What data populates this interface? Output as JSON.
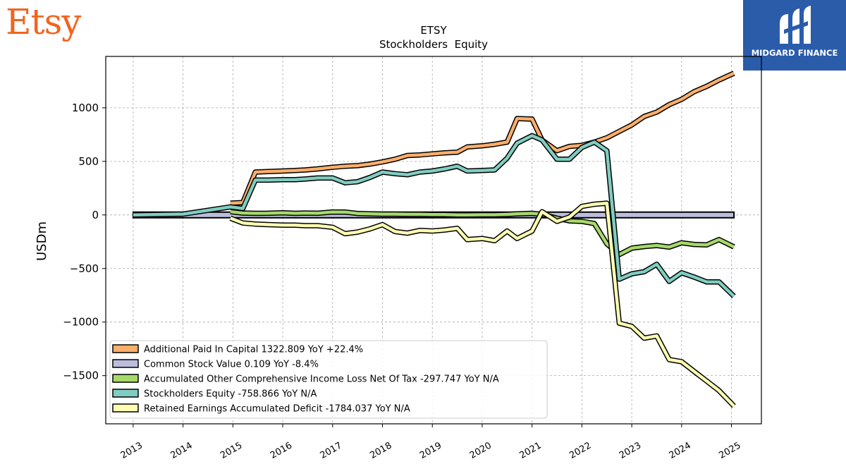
{
  "brand": {
    "company_logo_text": "Etsy",
    "publisher_logo_text": "MIDGARD FINANCE"
  },
  "chart_data": {
    "type": "line",
    "title": "ETSY",
    "subtitle": "Stockholders  Equity",
    "ylabel": "USDm",
    "xlabel": "",
    "ylim": [
      -1950,
      1480
    ],
    "xlim": [
      2012.45,
      2025.6
    ],
    "yticks": [
      -1500,
      -1000,
      -500,
      0,
      500,
      1000
    ],
    "ytick_labels": [
      "−1500",
      "−1000",
      "−500",
      "0",
      "500",
      "1000"
    ],
    "xticks": [
      2013,
      2014,
      2015,
      2016,
      2017,
      2018,
      2019,
      2020,
      2021,
      2022,
      2023,
      2024,
      2025
    ],
    "xtick_labels": [
      "2013",
      "2014",
      "2015",
      "2016",
      "2017",
      "2018",
      "2019",
      "2020",
      "2021",
      "2022",
      "2023",
      "2024",
      "2025"
    ],
    "grid": true,
    "legend_position": "lower-left",
    "series": [
      {
        "name": "Additional Paid In Capital",
        "legend_label": "Additional Paid In Capital  1322.809 YoY +22.4%",
        "color": "#fdae6b",
        "x": [
          2014.95,
          2015.2,
          2015.45,
          2015.7,
          2016.0,
          2016.25,
          2016.45,
          2016.7,
          2017.0,
          2017.25,
          2017.5,
          2017.75,
          2018.0,
          2018.25,
          2018.5,
          2018.75,
          2019.0,
          2019.25,
          2019.5,
          2019.7,
          2020.0,
          2020.25,
          2020.5,
          2020.7,
          2021.0,
          2021.2,
          2021.5,
          2021.75,
          2022.0,
          2022.25,
          2022.5,
          2022.75,
          2023.0,
          2023.25,
          2023.5,
          2023.75,
          2024.0,
          2024.25,
          2024.5,
          2024.75,
          2025.05
        ],
        "y": [
          110,
          115,
          400,
          405,
          410,
          415,
          420,
          430,
          445,
          455,
          460,
          475,
          495,
          520,
          555,
          560,
          570,
          580,
          585,
          635,
          645,
          660,
          680,
          900,
          895,
          700,
          600,
          640,
          650,
          680,
          720,
          780,
          840,
          920,
          960,
          1030,
          1080,
          1150,
          1200,
          1260,
          1323
        ]
      },
      {
        "name": "Common Stock Value",
        "legend_label": "Common Stock Value  0.109 YoY -8.4%",
        "color": "#bcbddc",
        "x": [
          2013.0,
          2025.05
        ],
        "y": [
          0.1,
          0.109
        ]
      },
      {
        "name": "Accumulated Other Comprehensive Income Loss Net Of Tax",
        "legend_label": "Accumulated Other Comprehensive Income Loss Net Of Tax  -297.747 YoY N/A",
        "color": "#a6d96a",
        "x": [
          2014.95,
          2015.2,
          2015.45,
          2015.7,
          2016.0,
          2016.25,
          2016.45,
          2016.7,
          2017.0,
          2017.25,
          2017.5,
          2017.75,
          2018.0,
          2018.25,
          2018.5,
          2018.75,
          2019.0,
          2019.25,
          2019.5,
          2019.7,
          2020.0,
          2020.25,
          2020.5,
          2020.7,
          2021.0,
          2021.2,
          2021.5,
          2021.75,
          2022.0,
          2022.25,
          2022.5,
          2022.75,
          2023.0,
          2023.25,
          2023.5,
          2023.75,
          2024.0,
          2024.25,
          2024.5,
          2024.75,
          2025.05
        ],
        "y": [
          30,
          18,
          15,
          16,
          20,
          15,
          18,
          16,
          28,
          27,
          14,
          10,
          8,
          8,
          6,
          6,
          4,
          3,
          0,
          0,
          2,
          2,
          5,
          10,
          15,
          5,
          -30,
          -55,
          -60,
          -80,
          -270,
          -370,
          -310,
          -295,
          -285,
          -300,
          -260,
          -275,
          -280,
          -230,
          -298
        ]
      },
      {
        "name": "Stockholders Equity",
        "legend_label": "Stockholders Equity  -758.866 YoY N/A",
        "color": "#80cdc1",
        "x": [
          2013.0,
          2014.0,
          2014.95,
          2015.2,
          2015.45,
          2015.7,
          2016.0,
          2016.25,
          2016.45,
          2016.7,
          2017.0,
          2017.25,
          2017.5,
          2017.75,
          2018.0,
          2018.25,
          2018.5,
          2018.75,
          2019.0,
          2019.25,
          2019.5,
          2019.7,
          2020.0,
          2020.25,
          2020.5,
          2020.7,
          2021.0,
          2021.2,
          2021.5,
          2021.75,
          2022.0,
          2022.25,
          2022.5,
          2022.75,
          2023.0,
          2023.25,
          2023.5,
          2023.75,
          2024.0,
          2024.25,
          2024.5,
          2024.75,
          2025.05
        ],
        "y": [
          0,
          8,
          75,
          60,
          325,
          325,
          330,
          330,
          335,
          345,
          345,
          300,
          310,
          350,
          400,
          385,
          375,
          400,
          410,
          430,
          455,
          410,
          415,
          420,
          530,
          670,
          740,
          700,
          520,
          520,
          630,
          680,
          600,
          -600,
          -550,
          -530,
          -460,
          -620,
          -540,
          -580,
          -625,
          -625,
          -759
        ]
      },
      {
        "name": "Retained Earnings Accumulated Deficit",
        "legend_label": "Retained Earnings Accumulated Deficit  -1784.037 YoY N/A",
        "color": "#ffffb3",
        "x": [
          2014.95,
          2015.2,
          2015.45,
          2015.7,
          2016.0,
          2016.25,
          2016.45,
          2016.7,
          2017.0,
          2017.25,
          2017.5,
          2017.75,
          2018.0,
          2018.25,
          2018.5,
          2018.75,
          2019.0,
          2019.25,
          2019.5,
          2019.7,
          2020.0,
          2020.25,
          2020.5,
          2020.7,
          2021.0,
          2021.2,
          2021.5,
          2021.75,
          2022.0,
          2022.25,
          2022.5,
          2022.75,
          2023.0,
          2023.25,
          2023.5,
          2023.75,
          2024.0,
          2024.25,
          2024.5,
          2024.75,
          2025.05
        ],
        "y": [
          -30,
          -75,
          -85,
          -90,
          -95,
          -95,
          -100,
          -100,
          -115,
          -175,
          -160,
          -130,
          -90,
          -155,
          -170,
          -145,
          -150,
          -140,
          -125,
          -230,
          -220,
          -240,
          -150,
          -220,
          -150,
          30,
          -60,
          -20,
          80,
          100,
          110,
          -1010,
          -1040,
          -1150,
          -1130,
          -1350,
          -1370,
          -1460,
          -1550,
          -1640,
          -1784
        ]
      }
    ]
  }
}
